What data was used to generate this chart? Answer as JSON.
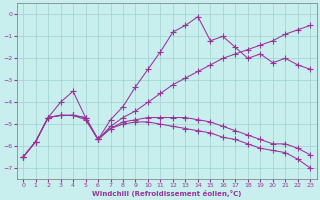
{
  "xlabel": "Windchill (Refroidissement éolien,°C)",
  "xlim": [
    -0.5,
    23.5
  ],
  "ylim": [
    -7.5,
    0.5
  ],
  "yticks": [
    0,
    -1,
    -2,
    -3,
    -4,
    -5,
    -6,
    -7
  ],
  "xticks": [
    0,
    1,
    2,
    3,
    4,
    5,
    6,
    7,
    8,
    9,
    10,
    11,
    12,
    13,
    14,
    15,
    16,
    17,
    18,
    19,
    20,
    21,
    22,
    23
  ],
  "bg_color": "#c8eeee",
  "grid_color": "#a0d0d0",
  "line_color": "#993399",
  "line1_x": [
    0,
    1,
    2,
    3,
    4,
    5,
    6,
    7,
    8,
    9,
    10,
    11,
    12,
    13,
    14,
    15,
    16,
    17,
    18,
    19,
    20,
    21,
    22,
    23
  ],
  "line1_y": [
    -6.5,
    -5.8,
    -4.7,
    -4.0,
    -3.5,
    -4.7,
    -5.7,
    -4.8,
    -4.2,
    -3.3,
    -2.5,
    -1.7,
    -0.8,
    -0.5,
    -0.1,
    -1.2,
    -1.0,
    -1.5,
    -2.0,
    -1.8,
    -2.2,
    -2.0,
    -2.3,
    -2.5
  ],
  "line2_x": [
    0,
    1,
    2,
    3,
    4,
    5,
    6,
    7,
    8,
    9,
    10,
    11,
    12,
    13,
    14,
    15,
    16,
    17,
    18,
    19,
    20,
    21,
    22,
    23
  ],
  "line2_y": [
    -6.5,
    -5.8,
    -4.7,
    -4.6,
    -4.6,
    -4.7,
    -5.7,
    -5.1,
    -4.7,
    -4.4,
    -4.0,
    -3.6,
    -3.2,
    -2.9,
    -2.6,
    -2.3,
    -2.0,
    -1.8,
    -1.6,
    -1.4,
    -1.2,
    -0.9,
    -0.7,
    -0.5
  ],
  "line3_x": [
    0,
    1,
    2,
    3,
    4,
    5,
    6,
    7,
    8,
    9,
    10,
    11,
    12,
    13,
    14,
    15,
    16,
    17,
    18,
    19,
    20,
    21,
    22,
    23
  ],
  "line3_y": [
    -6.5,
    -5.8,
    -4.7,
    -4.6,
    -4.6,
    -4.7,
    -5.7,
    -5.2,
    -4.9,
    -4.8,
    -4.7,
    -4.7,
    -4.7,
    -4.7,
    -4.8,
    -4.9,
    -5.1,
    -5.3,
    -5.5,
    -5.7,
    -5.9,
    -5.9,
    -6.1,
    -6.4
  ],
  "line4_x": [
    0,
    1,
    2,
    3,
    4,
    5,
    6,
    7,
    8,
    9,
    10,
    11,
    12,
    13,
    14,
    15,
    16,
    17,
    18,
    19,
    20,
    21,
    22,
    23
  ],
  "line4_y": [
    -6.5,
    -5.8,
    -4.7,
    -4.6,
    -4.6,
    -4.8,
    -5.7,
    -5.2,
    -5.0,
    -4.9,
    -4.9,
    -5.0,
    -5.1,
    -5.2,
    -5.3,
    -5.4,
    -5.6,
    -5.7,
    -5.9,
    -6.1,
    -6.2,
    -6.3,
    -6.6,
    -7.0
  ]
}
